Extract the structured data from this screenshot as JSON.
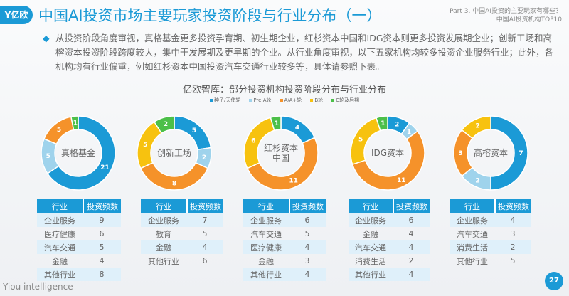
{
  "header": {
    "logo": "Y亿欧",
    "title": "中国AI投资市场主要玩家投资阶段与行业分布（一）",
    "part": "Part 3. 中国AI投资的主要玩家有哪些？",
    "sub": "中国AI投资机构TOP10"
  },
  "bullet": "从投资阶段角度审视，真格基金更多投资孕育期、初生期企业，红杉资本中国和IDG资本则更多投资发展期企业；创新工场和高榕资本投资阶段跨度较大，集中于发展期及更早期的企业。从行业角度审视，以下五家机构均较多投资企业服务行业；此外，各机构均有行业偏重，例如红杉资本中国投资汽车交通行业较多等，具体请参照下表。",
  "chart_data": {
    "type": "pie",
    "title": "亿欧智库：部分投资机构投资阶段分布与行业分布",
    "legend_position": "top",
    "categories": [
      "种子/天使轮",
      "Pre A轮",
      "A/A+轮",
      "B轮",
      "C轮及后期"
    ],
    "colors": [
      "#1b9ad6",
      "#9fd3ec",
      "#f5922a",
      "#f7c20f",
      "#4cbf49"
    ],
    "series": [
      {
        "name": "真格基金",
        "values": [
          21,
          5,
          5,
          0,
          1
        ]
      },
      {
        "name": "创新工场",
        "values": [
          5,
          2,
          8,
          5,
          2
        ]
      },
      {
        "name": "红杉资本中国",
        "values": [
          4,
          0,
          11,
          6,
          1
        ]
      },
      {
        "name": "IDG资本",
        "values": [
          2,
          1,
          11,
          5,
          1
        ]
      },
      {
        "name": "高榕资本",
        "values": [
          7,
          2,
          3,
          2,
          0
        ]
      }
    ]
  },
  "table_headers": [
    "行业",
    "投资频数"
  ],
  "tables": [
    [
      [
        "企业服务",
        "9"
      ],
      [
        "医疗健康",
        "6"
      ],
      [
        "汽车交通",
        "5"
      ],
      [
        "金融",
        "4"
      ],
      [
        "其他行业",
        "8"
      ]
    ],
    [
      [
        "企业服务",
        "7"
      ],
      [
        "教育",
        "5"
      ],
      [
        "金融",
        "4"
      ],
      [
        "其他行业",
        "6"
      ]
    ],
    [
      [
        "企业服务",
        "6"
      ],
      [
        "汽车交通",
        "5"
      ],
      [
        "医疗健康",
        "4"
      ],
      [
        "金融",
        "3"
      ],
      [
        "其他行业",
        "4"
      ]
    ],
    [
      [
        "企业服务",
        "6"
      ],
      [
        "金融",
        "4"
      ],
      [
        "汽车交通",
        "4"
      ],
      [
        "消费生活",
        "2"
      ],
      [
        "其他行业",
        "4"
      ]
    ],
    [
      [
        "企业服务",
        "4"
      ],
      [
        "汽车交通",
        "3"
      ],
      [
        "消费生活",
        "2"
      ],
      [
        "其他行业",
        "5"
      ]
    ]
  ],
  "footer": "Yiou intelligence",
  "page": "27"
}
